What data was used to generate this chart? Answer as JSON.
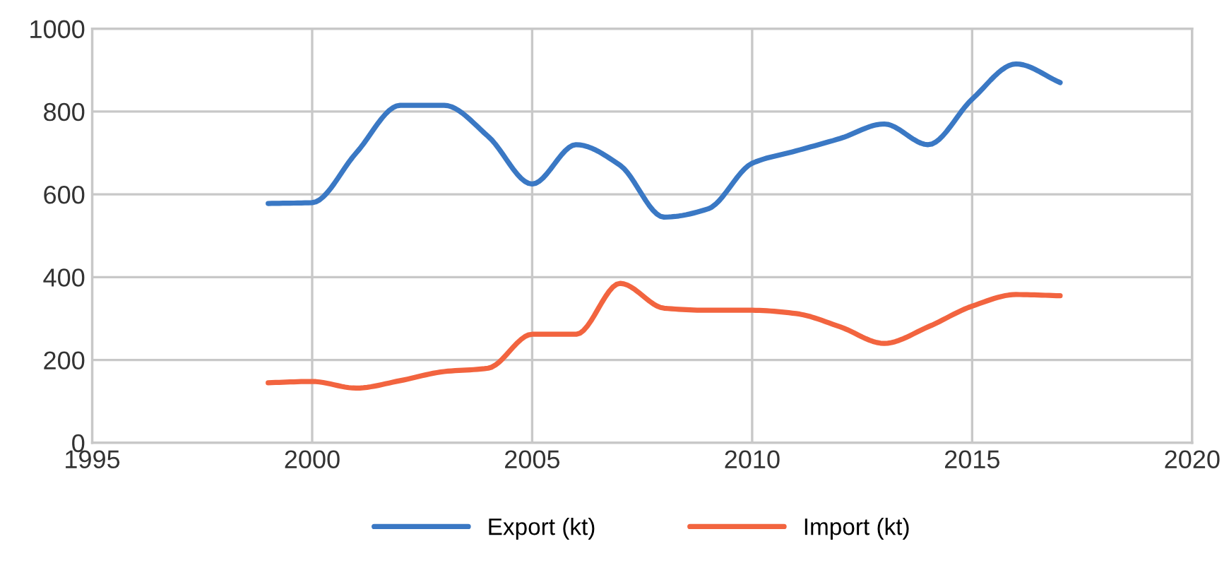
{
  "chart_data": {
    "type": "line",
    "x": [
      1999,
      2000,
      2001,
      2002,
      2003,
      2004,
      2005,
      2006,
      2007,
      2008,
      2009,
      2010,
      2011,
      2012,
      2013,
      2014,
      2015,
      2016,
      2017
    ],
    "series": [
      {
        "name": "Export (kt)",
        "color": "#3a78c4",
        "values": [
          578,
          580,
          700,
          815,
          815,
          740,
          625,
          720,
          670,
          545,
          565,
          675,
          705,
          735,
          770,
          720,
          830,
          915,
          870
        ]
      },
      {
        "name": "Import (kt)",
        "color": "#f2643f",
        "values": [
          145,
          148,
          132,
          150,
          172,
          180,
          262,
          262,
          385,
          325,
          320,
          320,
          312,
          280,
          240,
          280,
          330,
          358,
          355
        ]
      }
    ],
    "xlim": [
      1995,
      2020
    ],
    "xticks": [
      1995,
      2000,
      2005,
      2010,
      2015,
      2020
    ],
    "ylim": [
      0,
      1000
    ],
    "yticks": [
      0,
      200,
      400,
      600,
      800,
      1000
    ],
    "grid": true,
    "legend": "bottom",
    "marker": "none",
    "line_style": "solid"
  }
}
